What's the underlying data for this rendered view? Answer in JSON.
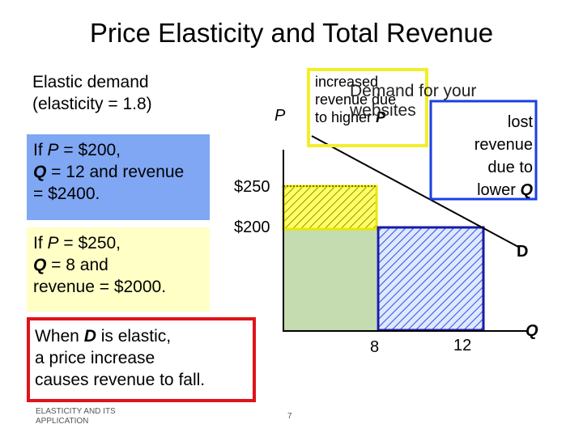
{
  "title": "Price Elasticity and Total Revenue",
  "left": {
    "heading_line1": "Elastic demand",
    "heading_line2": "(elasticity = 1.8)",
    "box1": {
      "if": "If ",
      "p_sym": "P",
      "p_val": " = $200,",
      "q_sym": "Q",
      "q_val": " = 12 and revenue",
      "rev": "= $2400."
    },
    "box2": {
      "if": "If ",
      "p_sym": "P",
      "p_val": " = $250,",
      "q_sym": "Q",
      "q_val": " = 8 and",
      "rev": "revenue = $2000."
    },
    "conclusion": {
      "l1a": "When ",
      "l1b": "D",
      "l1c": " is elastic,",
      "l2": "a price increase",
      "l3": "causes revenue to fall."
    }
  },
  "chart": {
    "p_axis_label": "P",
    "q_axis_label": "Q",
    "price_ticks": [
      "$250",
      "$200"
    ],
    "quantity_ticks": [
      "8",
      "12"
    ],
    "demand_label": "D",
    "demand_title": "Demand for your websites",
    "increased_text": {
      "l1": "increased",
      "l2": "revenue due",
      "l3a": "to higher ",
      "l3b": "P"
    },
    "lost_text": {
      "l1": "lost",
      "l2": "revenue",
      "l3": "due to",
      "l4a": "lower ",
      "l4b": "Q"
    },
    "colors": {
      "yellow": "#ffff66",
      "blue_box": "#1a1aa6",
      "green": "#c5dbb0",
      "red": "#e0131a"
    }
  },
  "footer": {
    "left": "ELASTICITY AND ITS APPLICATION",
    "page": "7"
  }
}
